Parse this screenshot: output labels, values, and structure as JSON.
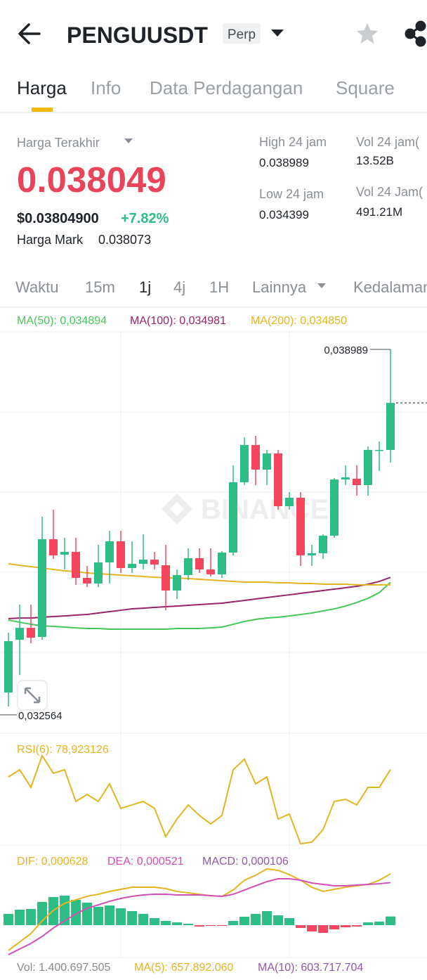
{
  "header": {
    "title": "PENGUUSDT",
    "badge": "Perp"
  },
  "tabs": [
    "Harga",
    "Info",
    "Data Perdagangan",
    "Square"
  ],
  "stats": {
    "last_label": "Harga Terakhir",
    "last_price": "0.038049",
    "usd_price": "$0.03804900",
    "change": "+7.82%",
    "mark_label": "Harga Mark",
    "mark_price": "0.038073",
    "high_label": "High 24 jam",
    "high": "0.038989",
    "low_label": "Low 24 jam",
    "low": "0.034399",
    "vol1_label": "Vol 24 jam(",
    "vol1": "13.52B",
    "vol2_label": "Vol 24 Jam(",
    "vol2": "491.21M"
  },
  "intervals": [
    "Waktu",
    "15m",
    "1j",
    "4j",
    "1H",
    "Lainnya",
    "Kedalaman"
  ],
  "watermark": "BINANCE",
  "chart_data": [
    {
      "type": "candlestick",
      "up_color": "#2ebd85",
      "down_color": "#f6465d",
      "ylim": [
        0.032278,
        0.039323
      ],
      "open": [
        0.032957,
        0.033884,
        0.034094,
        0.033934,
        0.035652,
        0.03538,
        0.035429,
        0.034972,
        0.034873,
        0.035244,
        0.035615,
        0.035145,
        0.035219,
        0.035293,
        0.035194,
        0.03475,
        0.035021,
        0.035318,
        0.03512,
        0.035034,
        0.035417,
        0.036653,
        0.037308,
        0.036875,
        0.03716,
        0.036233,
        0.036381,
        0.035368,
        0.035405,
        0.035714,
        0.036702,
        0.036715,
        0.036604,
        0.037209,
        0.037222
      ],
      "high": [
        0.034008,
        0.034502,
        0.034502,
        0.036047,
        0.036171,
        0.035677,
        0.035677,
        0.035182,
        0.035553,
        0.0358,
        0.0358,
        0.035615,
        0.035738,
        0.035429,
        0.035553,
        0.03512,
        0.035491,
        0.035491,
        0.035491,
        0.035442,
        0.03695,
        0.037444,
        0.037469,
        0.037222,
        0.037222,
        0.03648,
        0.03648,
        0.035553,
        0.035738,
        0.036727,
        0.03695,
        0.03695,
        0.037283,
        0.03737,
        0.038989
      ],
      "low": [
        0.03271,
        0.033266,
        0.033823,
        0.033884,
        0.035306,
        0.03512,
        0.034848,
        0.034811,
        0.034811,
        0.034873,
        0.035059,
        0.035059,
        0.03512,
        0.03512,
        0.034403,
        0.034601,
        0.034935,
        0.035059,
        0.034997,
        0.034972,
        0.035368,
        0.036604,
        0.036604,
        0.036604,
        0.036171,
        0.036171,
        0.035182,
        0.035182,
        0.035306,
        0.035677,
        0.036604,
        0.036418,
        0.036418,
        0.036851,
        0.036999
      ],
      "close": [
        0.03386,
        0.034094,
        0.033921,
        0.035652,
        0.035368,
        0.035429,
        0.034972,
        0.034873,
        0.035244,
        0.035615,
        0.035145,
        0.035219,
        0.035293,
        0.035207,
        0.03475,
        0.035021,
        0.035318,
        0.03512,
        0.035034,
        0.035417,
        0.036653,
        0.037308,
        0.036875,
        0.03716,
        0.036233,
        0.036381,
        0.035368,
        0.035405,
        0.035714,
        0.036702,
        0.036739,
        0.036604,
        0.037222,
        0.037222,
        0.038049
      ],
      "series": [
        {
          "name": "MA(50): 0,034894",
          "color": "#45c85a",
          "values": [
            0.03423,
            0.034193,
            0.034156,
            0.034131,
            0.034119,
            0.034107,
            0.034094,
            0.034082,
            0.034082,
            0.03407,
            0.03407,
            0.03407,
            0.03407,
            0.03407,
            0.03407,
            0.034082,
            0.034082,
            0.034082,
            0.034094,
            0.034107,
            0.034156,
            0.034206,
            0.034243,
            0.034267,
            0.03428,
            0.034304,
            0.034329,
            0.034354,
            0.034391,
            0.034428,
            0.034477,
            0.034539,
            0.034613,
            0.034712,
            0.034894
          ]
        },
        {
          "name": "MA(100): 0,034981",
          "color": "#9a2468",
          "values": [
            0.034255,
            0.034267,
            0.034267,
            0.03428,
            0.034292,
            0.034304,
            0.034317,
            0.034329,
            0.034354,
            0.034379,
            0.034403,
            0.034428,
            0.03444,
            0.034453,
            0.034465,
            0.034477,
            0.03449,
            0.034502,
            0.034515,
            0.034527,
            0.034552,
            0.034576,
            0.034601,
            0.034626,
            0.034651,
            0.034675,
            0.0347,
            0.034725,
            0.03475,
            0.034774,
            0.034799,
            0.034824,
            0.034861,
            0.03491,
            0.034981
          ]
        },
        {
          "name": "MA(200): 0,034850",
          "color": "#e3b522",
          "values": [
            0.035219,
            0.035194,
            0.03517,
            0.035145,
            0.03512,
            0.035096,
            0.035083,
            0.035059,
            0.035046,
            0.035034,
            0.035021,
            0.035009,
            0.034997,
            0.034984,
            0.034972,
            0.034972,
            0.03496,
            0.034947,
            0.034935,
            0.034923,
            0.03491,
            0.034898,
            0.034898,
            0.034898,
            0.034886,
            0.034886,
            0.034873,
            0.034873,
            0.034861,
            0.034861,
            0.034861,
            0.03485,
            0.03485,
            0.03485,
            0.03485
          ]
        }
      ],
      "max_marker": {
        "value": 0.038989,
        "label": "0,038989"
      },
      "min_marker": {
        "value": 0.032564,
        "label": "0,032564"
      }
    },
    {
      "type": "line",
      "ylim": [
        30,
        100
      ],
      "series": [
        {
          "name": "RSI(6): 78,923126",
          "color": "#e3b522",
          "values": [
            74.5,
            78.8,
            68.2,
            87.3,
            76.7,
            78.8,
            59.7,
            63.9,
            59.7,
            70.3,
            55.5,
            57.6,
            59.7,
            55.5,
            38.5,
            49.1,
            57.6,
            51.2,
            46.1,
            51.2,
            78.8,
            85.2,
            70.3,
            74.5,
            49.1,
            52.1,
            34.2,
            35.1,
            42.7,
            59.7,
            61.0,
            57.6,
            68.2,
            68.2,
            78.923126
          ]
        }
      ]
    },
    {
      "type": "macd",
      "ylim": [
        -0.000396,
        0.000912
      ],
      "series": [
        {
          "name": "DIF: 0,000628",
          "color": "#e3b522",
          "values": [
            -0.00031,
            -0.000206,
            -0.000103,
            5.2e-05,
            0.000181,
            0.000267,
            0.00031,
            0.000353,
            0.000378,
            0.000413,
            0.000439,
            0.000464,
            0.000464,
            0.000464,
            0.000447,
            0.000413,
            0.000396,
            0.000378,
            0.000361,
            0.000353,
            0.00043,
            0.00055,
            0.000611,
            0.000688,
            0.000671,
            0.000619,
            0.00055,
            0.000464,
            0.000413,
            0.000439,
            0.000464,
            0.000482,
            0.000499,
            0.00055,
            0.000628
          ]
        },
        {
          "name": "DEA: 0,000521",
          "color": "#d34fb3",
          "values": [
            -0.000361,
            -0.000292,
            -0.000224,
            -0.000138,
            -3.4e-05,
            5.2e-05,
            0.000138,
            0.000206,
            0.000249,
            0.000292,
            0.000327,
            0.000353,
            0.00037,
            0.000378,
            0.000378,
            0.00037,
            0.00037,
            0.00037,
            0.000361,
            0.000353,
            0.000378,
            0.00043,
            0.000482,
            0.000533,
            0.000568,
            0.000568,
            0.00055,
            0.000516,
            0.000499,
            0.000482,
            0.000482,
            0.00049,
            0.000499,
            0.000507,
            0.000521
          ]
        },
        {
          "name": "MACD: 0,000106",
          "color": "#8e5aa8",
          "up_color": "#2ebd85",
          "down_color": "#f6465d",
          "values": [
            0.000138,
            0.000189,
            0.000198,
            0.000284,
            0.000344,
            0.000361,
            0.00031,
            0.000275,
            0.000224,
            0.000241,
            0.000206,
            0.000172,
            0.000138,
            8.6e-05,
            5.2e-05,
            3.4e-05,
            1.7e-05,
            -1.7e-05,
            -9e-06,
            -9e-06,
            5.2e-05,
            0.000103,
            0.000138,
            0.000172,
            0.00012,
            8.6e-05,
            -3.4e-05,
            -7.7e-05,
            -9.5e-05,
            -5.2e-05,
            -2.6e-05,
            -1.7e-05,
            3.4e-05,
            4.3e-05,
            0.000106
          ]
        }
      ]
    }
  ],
  "volume_legend": [
    {
      "text": "Vol: 1.400.697.505",
      "color": "#8a8a8a"
    },
    {
      "text": "MA(5): 657.892.060",
      "color": "#e3b522"
    },
    {
      "text": "MA(10): 603.717.704",
      "color": "#8e5aa8"
    }
  ]
}
